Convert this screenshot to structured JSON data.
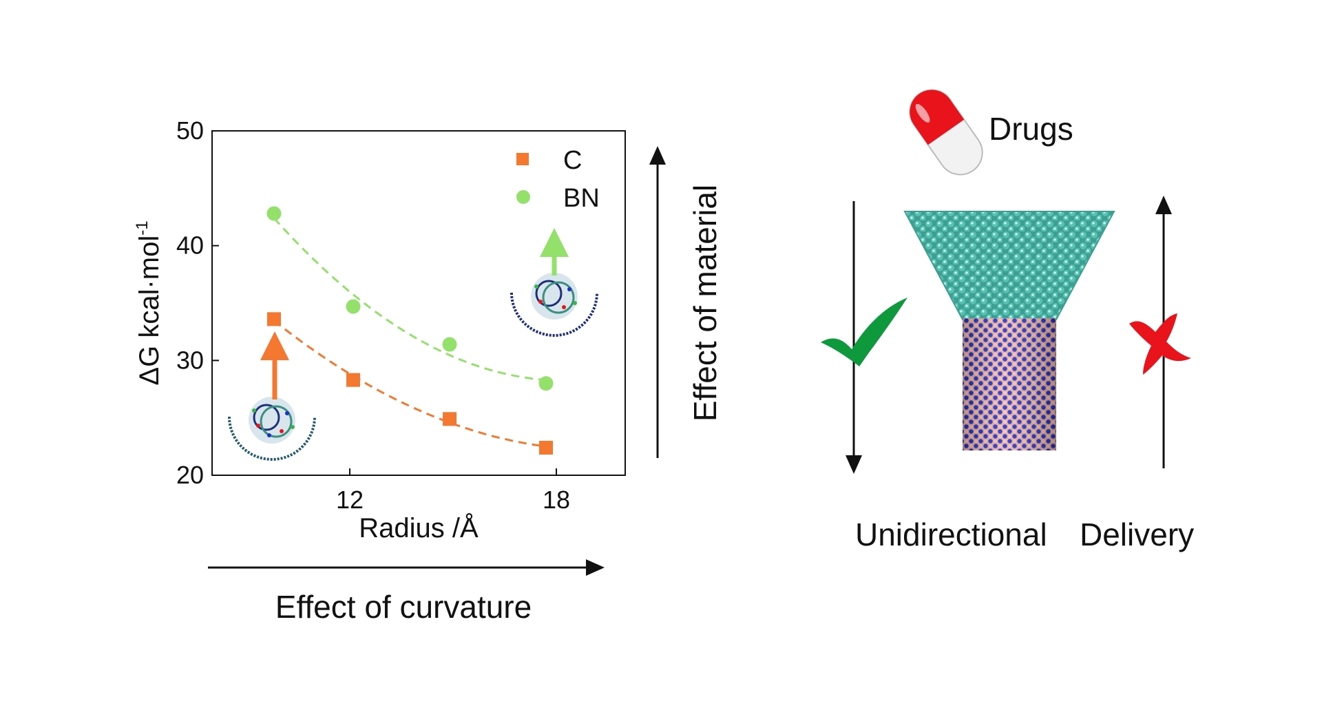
{
  "chart_data": {
    "type": "scatter",
    "title": "",
    "xlabel": "Radius /Å",
    "ylabel": "ΔG kcal·mol",
    "ylabel_sup": "-1",
    "xlim": [
      8,
      20
    ],
    "ylim": [
      20,
      50
    ],
    "xticks": [
      12,
      18
    ],
    "yticks": [
      20,
      30,
      40,
      50
    ],
    "grid": false,
    "legend": "top-right",
    "series": [
      {
        "name": "C",
        "marker": "square",
        "color": "#F4782F",
        "x": [
          9.8,
          12.1,
          14.9,
          17.7
        ],
        "y": [
          33.6,
          28.3,
          24.9,
          22.4
        ],
        "fit": "dashed-curve"
      },
      {
        "name": "BN",
        "marker": "circle",
        "color": "#93E06B",
        "x": [
          9.8,
          12.1,
          14.9,
          17.7
        ],
        "y": [
          42.8,
          34.7,
          31.4,
          28.0
        ],
        "fit": "dashed-curve"
      }
    ]
  },
  "annotations": {
    "effect_material": "Effect of material",
    "effect_curvature": "Effect of curvature",
    "drugs": "Drugs",
    "unidirectional": "Unidirectional",
    "delivery": "Delivery"
  },
  "colors": {
    "cone": "#4FB8A8",
    "tube_blue": "#1B2FC9",
    "tube_pink": "#E6A8A0",
    "check": "#0E9A3C",
    "cross": "#E8131B",
    "pill_red": "#E8131B"
  },
  "icons": [
    "drug-pill-icon",
    "checkmark-icon",
    "cross-icon",
    "nanotube-icon",
    "molecule-icon"
  ]
}
